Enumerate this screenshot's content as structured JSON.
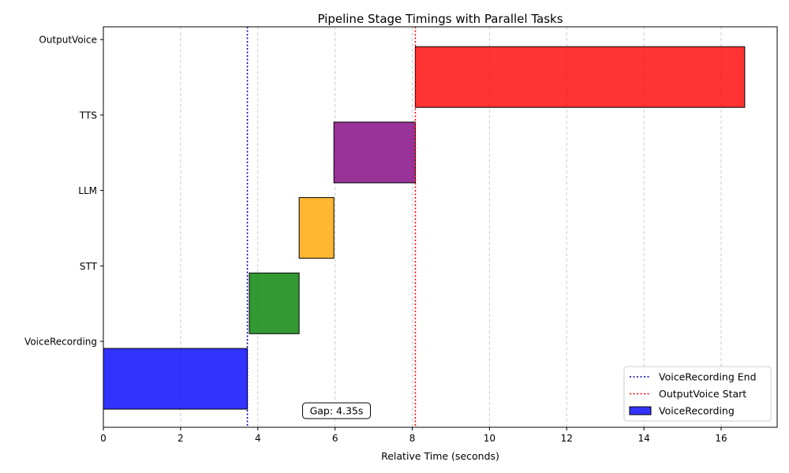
{
  "chart_data": {
    "type": "gantt",
    "title": "Pipeline Stage Timings with Parallel Tasks",
    "xlabel": "Relative Time (seconds)",
    "ylabel": "",
    "xlim": [
      0,
      17.45
    ],
    "x_ticks": [
      0,
      2,
      4,
      6,
      8,
      10,
      12,
      14,
      16
    ],
    "grid": "vertical-dashed",
    "stages": [
      {
        "name": "VoiceRecording",
        "start": 0.0,
        "end": 3.73,
        "color": "#0000ff"
      },
      {
        "name": "STT",
        "start": 3.78,
        "end": 5.07,
        "color": "#008000"
      },
      {
        "name": "LLM",
        "start": 5.07,
        "end": 5.97,
        "color": "#ffa500"
      },
      {
        "name": "TTS",
        "start": 5.97,
        "end": 8.08,
        "color": "#800080"
      },
      {
        "name": "OutputVoice",
        "start": 8.08,
        "end": 16.61,
        "color": "#ff0000"
      }
    ],
    "markers": [
      {
        "label": "VoiceRecording End",
        "x": 3.73,
        "color": "#0000bb"
      },
      {
        "label": "OutputVoice Start",
        "x": 8.08,
        "color": "#ff0000"
      }
    ],
    "annotation": {
      "text": "Gap: 4.35s",
      "x": 5.2
    },
    "legend": {
      "position": "lower-right",
      "entries": [
        {
          "label": "VoiceRecording End",
          "kind": "line",
          "color": "#0000bb"
        },
        {
          "label": "OutputVoice Start",
          "kind": "line",
          "color": "#ff0000"
        },
        {
          "label": "VoiceRecording",
          "kind": "patch",
          "color": "#0000ff"
        }
      ]
    }
  }
}
